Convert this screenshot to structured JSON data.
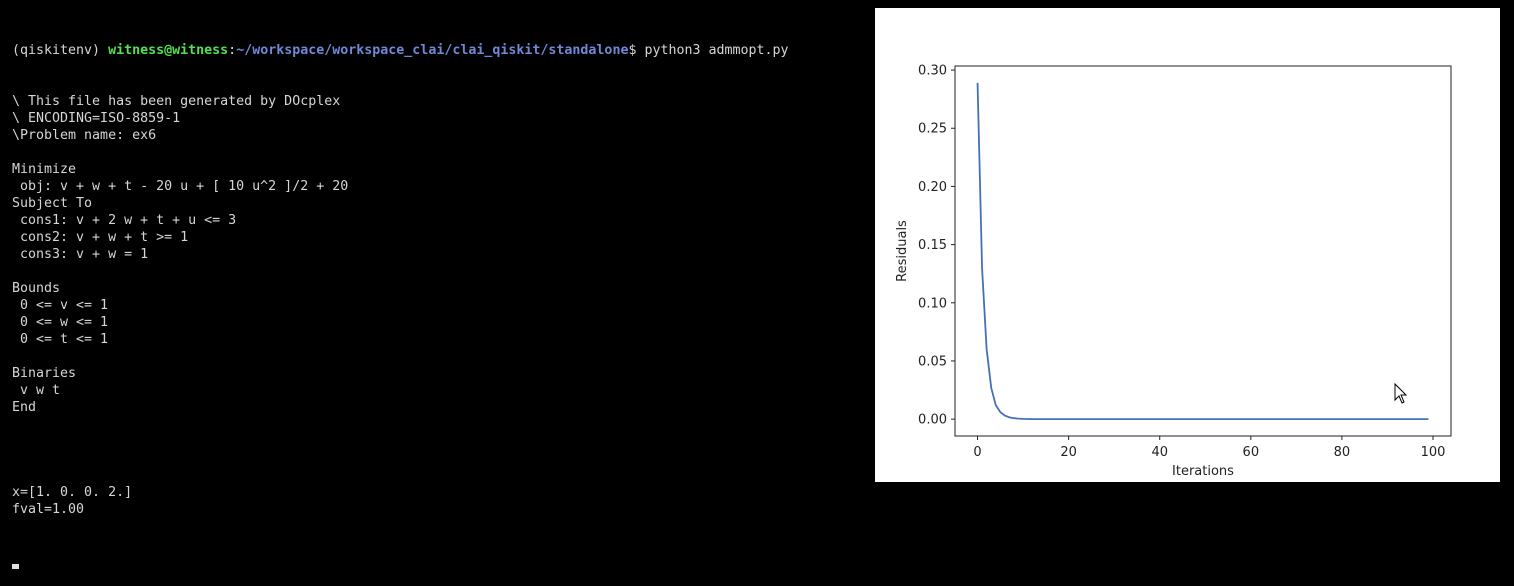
{
  "terminal": {
    "prompt": {
      "env": "(qiskitenv) ",
      "user": "witness@witness",
      "sep": ":",
      "path": "~/workspace/workspace_clai/clai_qiskit/standalone",
      "command": "$ python3 admmopt.py"
    },
    "blocks": [
      [
        "\\ This file has been generated by DOcplex",
        "\\ ENCODING=ISO-8859-1",
        "\\Problem name: ex6"
      ],
      [
        "Minimize",
        " obj: v + w + t - 20 u + [ 10 u^2 ]/2 + 20",
        "Subject To",
        " cons1: v + 2 w + t + u <= 3",
        " cons2: v + w + t >= 1",
        " cons3: v + w = 1"
      ],
      [
        "Bounds",
        " 0 <= v <= 1",
        " 0 <= w <= 1",
        " 0 <= t <= 1"
      ],
      [
        "Binaries",
        " v w t",
        "End"
      ],
      [
        "x=[1. 0. 0. 2.]",
        "fval=1.00"
      ]
    ]
  },
  "chart_data": {
    "type": "line",
    "xlabel": "Iterations",
    "ylabel": "Residuals",
    "x": [
      0,
      1,
      2,
      3,
      4,
      5,
      6,
      7,
      8,
      9,
      10,
      11,
      12,
      13,
      14,
      15,
      16,
      17,
      18,
      19,
      20,
      21,
      22,
      23,
      24,
      25,
      26,
      27,
      28,
      29,
      30,
      31,
      32,
      33,
      34,
      35,
      36,
      37,
      38,
      39,
      40,
      41,
      42,
      43,
      44,
      45,
      46,
      47,
      48,
      49,
      50,
      51,
      52,
      53,
      54,
      55,
      56,
      57,
      58,
      59,
      60,
      61,
      62,
      63,
      64,
      65,
      66,
      67,
      68,
      69,
      70,
      71,
      72,
      73,
      74,
      75,
      76,
      77,
      78,
      79,
      80,
      81,
      82,
      83,
      84,
      85,
      86,
      87,
      88,
      89,
      90,
      91,
      92,
      93,
      94,
      95,
      96,
      97,
      98,
      99
    ],
    "series": [
      {
        "name": "Residuals",
        "color": "#4470b6",
        "values": [
          0.289,
          0.129,
          0.06,
          0.027,
          0.012,
          0.006,
          0.003,
          0.0015,
          0.0008,
          0.0004,
          0.0002,
          0.0001,
          0,
          0,
          0,
          0,
          0,
          0,
          0,
          0,
          0,
          0,
          0,
          0,
          0,
          0,
          0,
          0,
          0,
          0,
          0,
          0,
          0,
          0,
          0,
          0,
          0,
          0,
          0,
          0,
          0,
          0,
          0,
          0,
          0,
          0,
          0,
          0,
          0,
          0,
          0,
          0,
          0,
          0,
          0,
          0,
          0,
          0,
          0,
          0,
          0,
          0,
          0,
          0,
          0,
          0,
          0,
          0,
          0,
          0,
          0,
          0,
          0,
          0,
          0,
          0,
          0,
          0,
          0,
          0,
          0,
          0,
          0,
          0,
          0,
          0,
          0,
          0,
          0,
          0,
          0,
          0,
          0,
          0,
          0,
          0,
          0,
          0,
          0,
          0
        ]
      }
    ],
    "xlim": [
      -4.95,
      103.95
    ],
    "ylim": [
      -0.0145,
      0.3035
    ],
    "xticks": [
      0,
      20,
      40,
      60,
      80,
      100
    ],
    "yticks": [
      {
        "value": 0,
        "label": "0.00"
      },
      {
        "value": 0.05,
        "label": "0.05"
      },
      {
        "value": 0.1,
        "label": "0.10"
      },
      {
        "value": 0.15,
        "label": "0.15"
      },
      {
        "value": 0.2,
        "label": "0.20"
      },
      {
        "value": 0.25,
        "label": "0.25"
      },
      {
        "value": 0.3,
        "label": "0.30"
      }
    ]
  }
}
